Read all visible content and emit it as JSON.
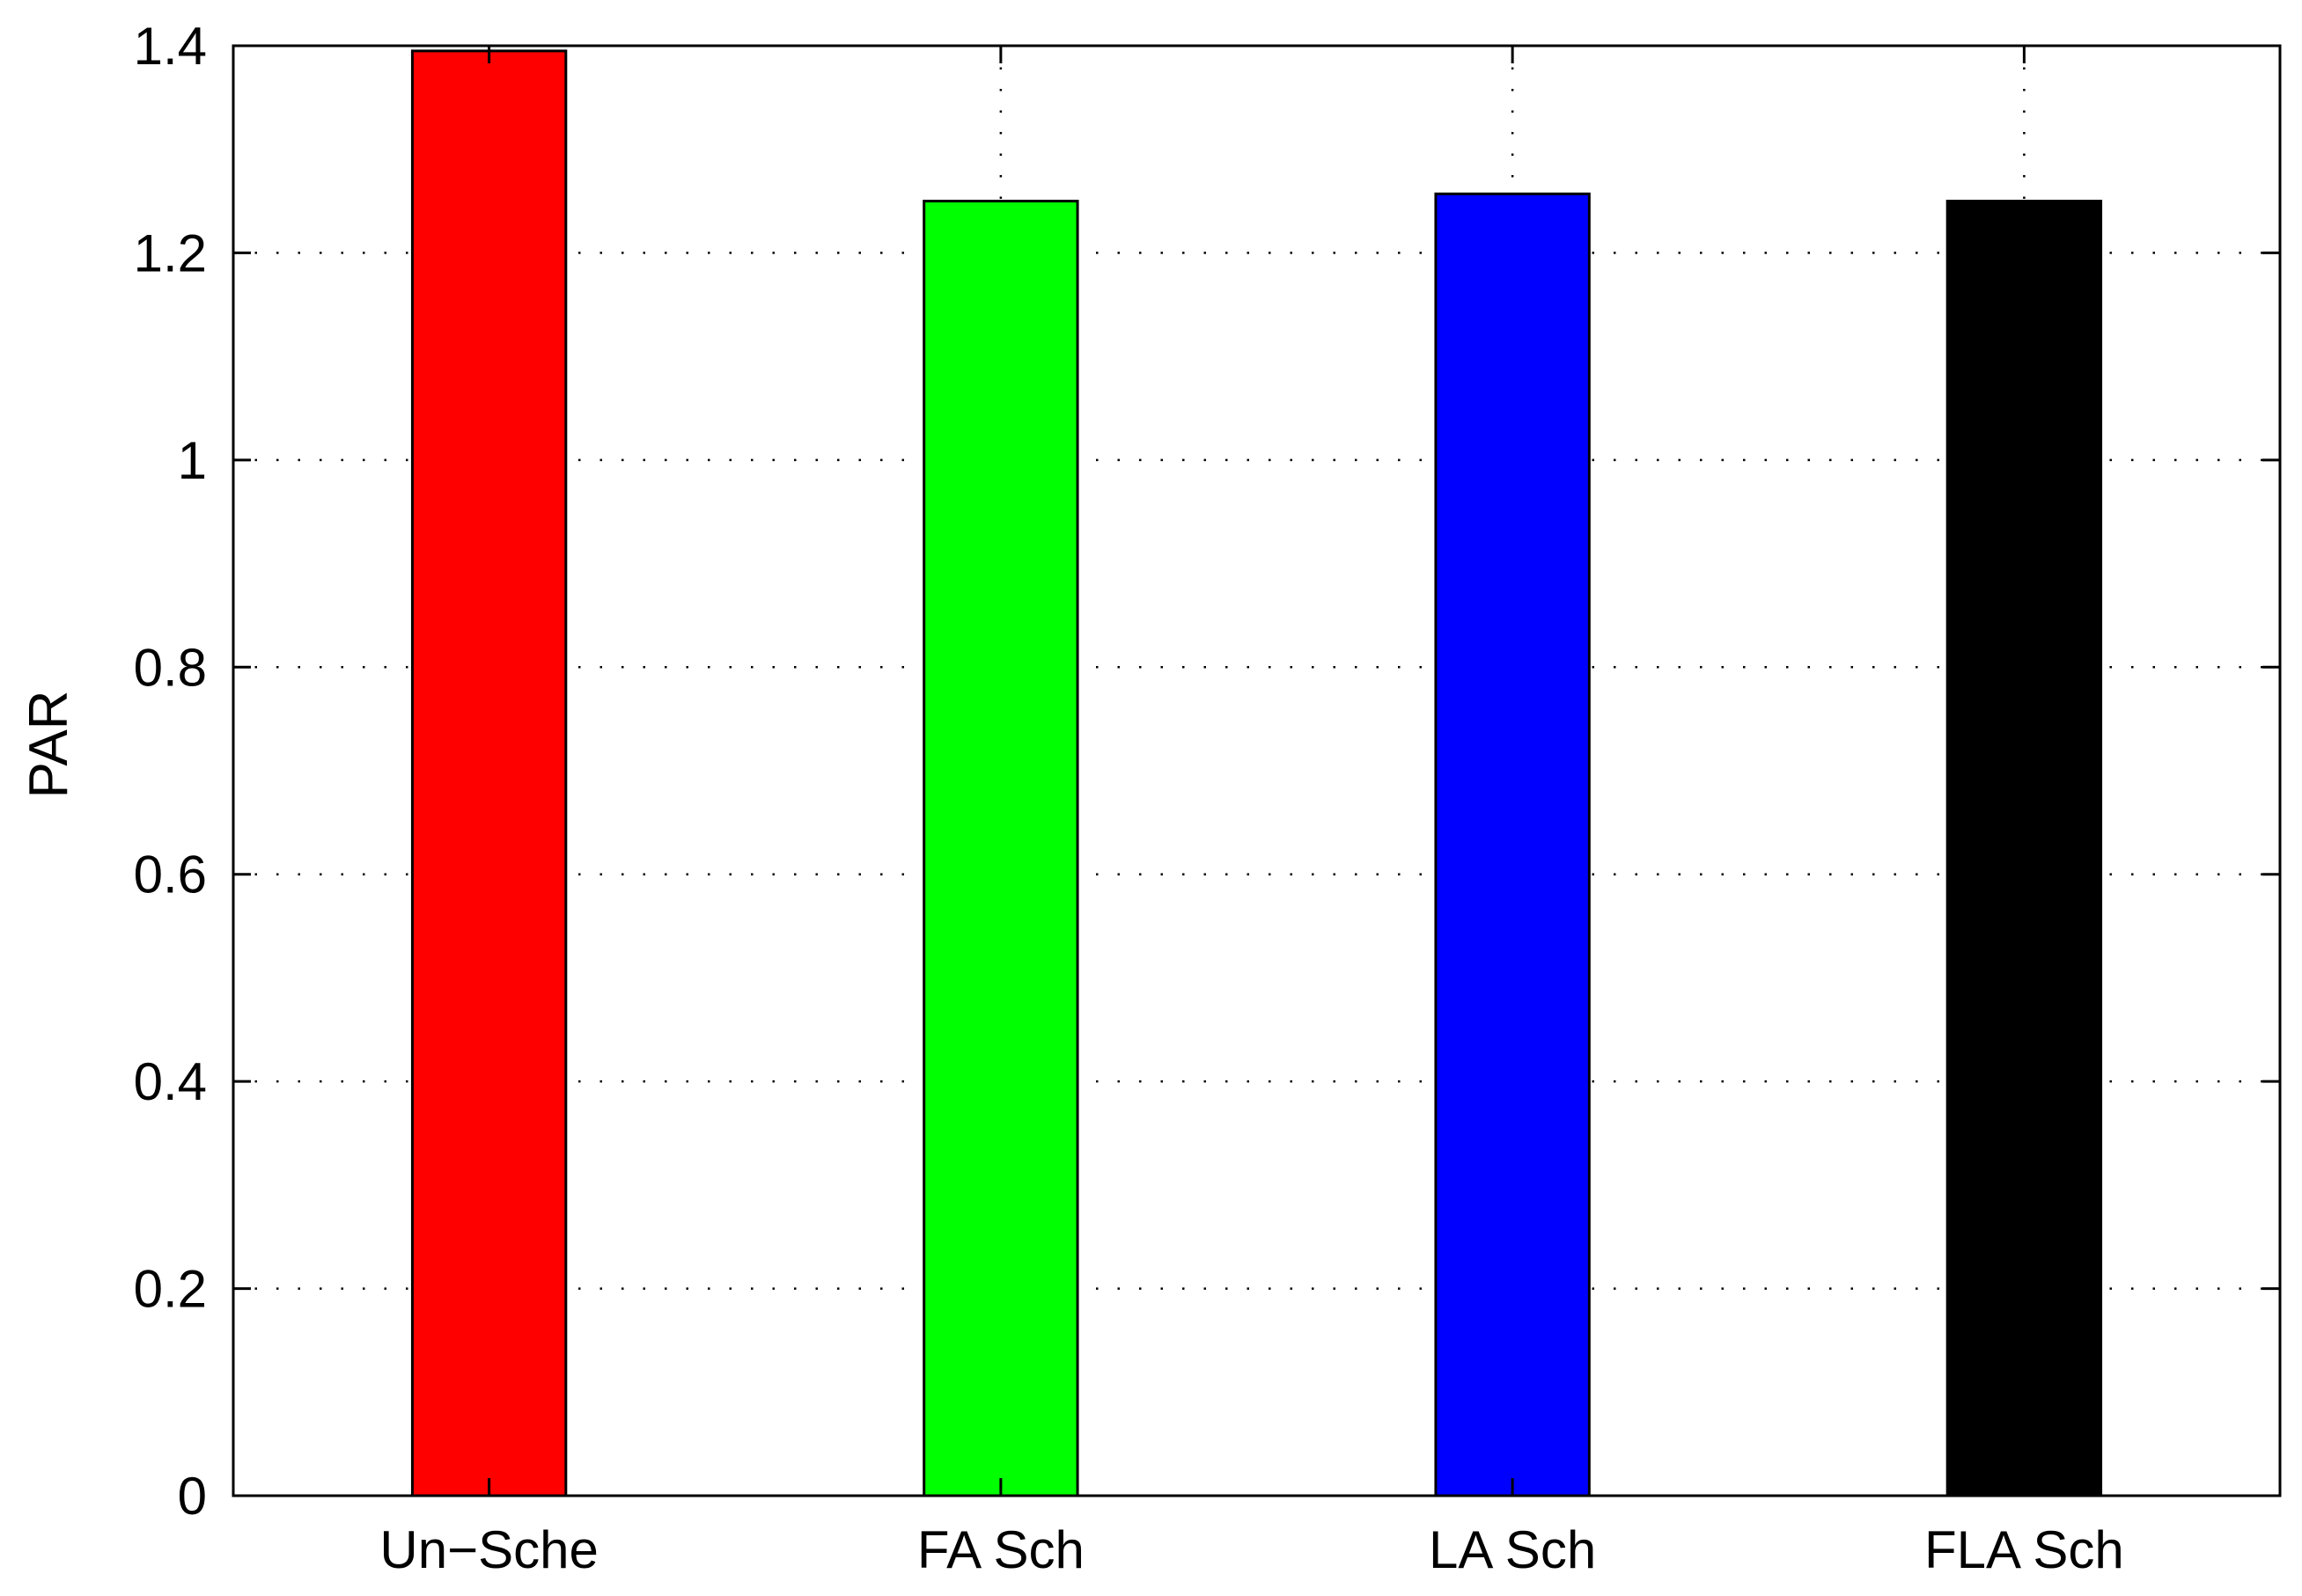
{
  "chart_data": {
    "type": "bar",
    "categories": [
      "Un−Sche",
      "FA Sch",
      "LA Sch",
      "FLA Sch"
    ],
    "values": [
      1.395,
      1.25,
      1.257,
      1.25
    ],
    "colors": [
      "#ff0000",
      "#00ff00",
      "#0000ff",
      "#000000"
    ],
    "title": "",
    "xlabel": "",
    "ylabel": "PAR",
    "ylim": [
      0,
      1.4
    ],
    "yticks": [
      0,
      0.2,
      0.4,
      0.6,
      0.8,
      1,
      1.2,
      1.4
    ],
    "ytick_labels": [
      "0",
      "0.2",
      "0.4",
      "0.6",
      "0.8",
      "1",
      "1.2",
      "1.4"
    ],
    "grid": true,
    "grid_style": "dotted",
    "legend": "none"
  }
}
